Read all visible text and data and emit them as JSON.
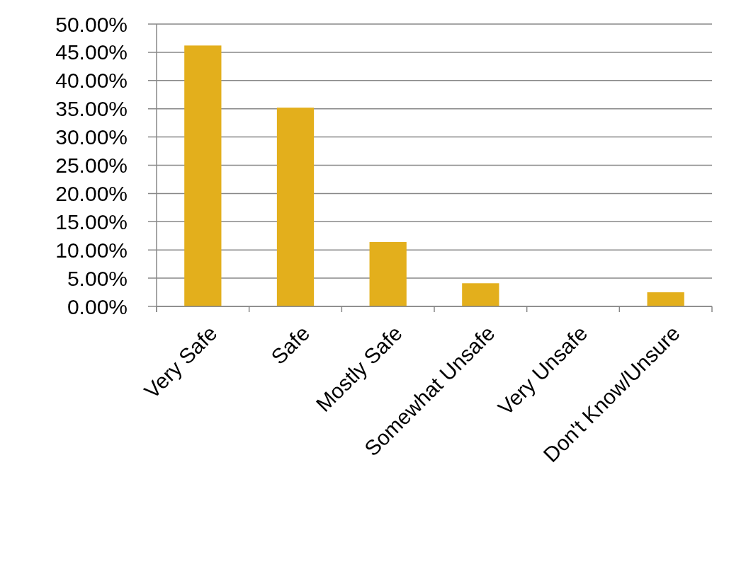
{
  "chart_data": {
    "type": "bar",
    "categories": [
      "Very Safe",
      "Safe",
      "Mostly Safe",
      "Somewhat Unsafe",
      "Very Unsafe",
      "Don't Know/Unsure"
    ],
    "values": [
      46.2,
      35.2,
      11.4,
      4.1,
      0,
      2.5
    ],
    "color": "#e3af1c",
    "ylim": [
      0,
      50
    ],
    "yticks": [
      {
        "value": 0,
        "label": "0.00%"
      },
      {
        "value": 5,
        "label": "5.00%"
      },
      {
        "value": 10,
        "label": "10.00%"
      },
      {
        "value": 15,
        "label": "15.00%"
      },
      {
        "value": 20,
        "label": "20.00%"
      },
      {
        "value": 25,
        "label": "25.00%"
      },
      {
        "value": 30,
        "label": "30.00%"
      },
      {
        "value": 35,
        "label": "35.00%"
      },
      {
        "value": 40,
        "label": "40.00%"
      },
      {
        "value": 45,
        "label": "45.00%"
      },
      {
        "value": 50,
        "label": "50.00%"
      }
    ],
    "grid": "y"
  }
}
